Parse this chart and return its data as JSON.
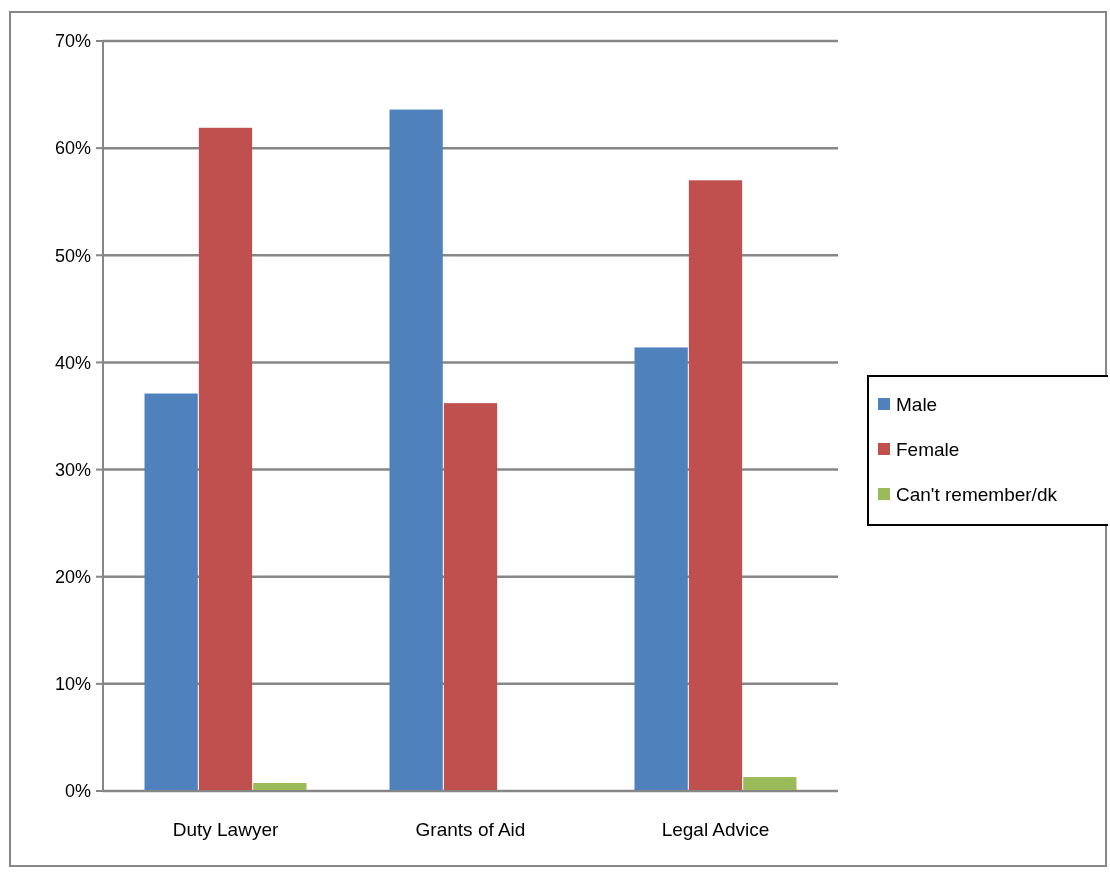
{
  "chart_data": {
    "type": "bar",
    "categories": [
      "Duty Lawyer",
      "Grants of Aid",
      "Legal Advice"
    ],
    "series": [
      {
        "name": "Male",
        "color": "#4f81bd",
        "values": [
          37.1,
          63.6,
          41.4
        ]
      },
      {
        "name": "Female",
        "color": "#c0504d",
        "values": [
          61.9,
          36.2,
          57.0
        ]
      },
      {
        "name": "Can't remember/dk",
        "color": "#9bbb59",
        "values": [
          0.75,
          0,
          1.3
        ]
      }
    ],
    "ylim": [
      0,
      70
    ],
    "yticks": [
      {
        "value": 0,
        "label": "0%"
      },
      {
        "value": 10,
        "label": "10%"
      },
      {
        "value": 20,
        "label": "20%"
      },
      {
        "value": 30,
        "label": "30%"
      },
      {
        "value": 40,
        "label": "40%"
      },
      {
        "value": 50,
        "label": "50%"
      },
      {
        "value": 60,
        "label": "60%"
      },
      {
        "value": 70,
        "label": "70%"
      }
    ],
    "grid": "y",
    "legend": "right"
  }
}
